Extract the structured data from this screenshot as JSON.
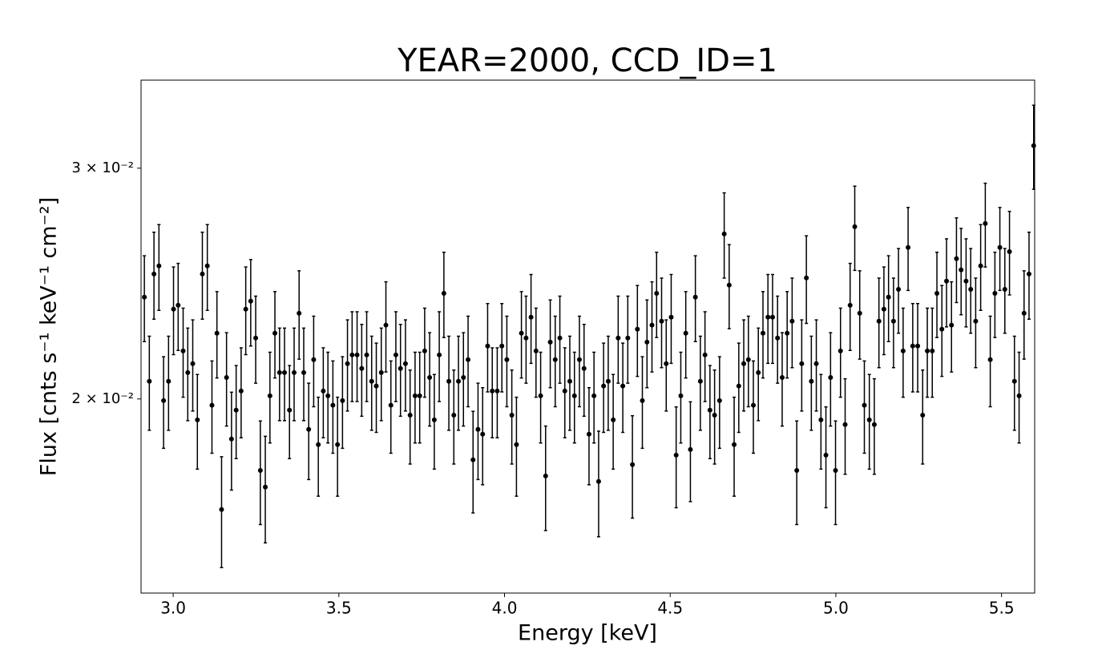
{
  "chart_data": {
    "type": "errorbar-scatter",
    "title": "YEAR=2000, CCD_ID=1",
    "xlabel": "Energy [keV]",
    "ylabel": "Flux [cnts s⁻¹ keV⁻¹ cm⁻²]",
    "yscale": "log",
    "color": "#000000",
    "xlim": [
      2.903,
      5.6
    ],
    "ylim": [
      0.01422,
      0.03502
    ],
    "xticks": [
      {
        "value": 3,
        "label": "3.0"
      },
      3.5,
      {
        "value": 4,
        "label": "4.0"
      },
      4.5,
      {
        "value": 5,
        "label": "5.0"
      },
      5.5
    ],
    "yticks": [
      {
        "value": 0.02,
        "label": "2 × 10⁻²"
      },
      {
        "value": 0.03,
        "label": "3 × 10⁻²"
      }
    ],
    "x": [
      2.913,
      2.928,
      2.942,
      2.957,
      2.971,
      2.986,
      3.001,
      3.015,
      3.03,
      3.044,
      3.059,
      3.073,
      3.088,
      3.103,
      3.117,
      3.132,
      3.146,
      3.161,
      3.176,
      3.19,
      3.205,
      3.219,
      3.234,
      3.249,
      3.263,
      3.278,
      3.292,
      3.307,
      3.321,
      3.336,
      3.351,
      3.365,
      3.38,
      3.394,
      3.409,
      3.424,
      3.438,
      3.453,
      3.467,
      3.482,
      3.496,
      3.511,
      3.526,
      3.54,
      3.555,
      3.569,
      3.584,
      3.599,
      3.613,
      3.628,
      3.642,
      3.657,
      3.672,
      3.686,
      3.701,
      3.715,
      3.73,
      3.744,
      3.759,
      3.774,
      3.788,
      3.803,
      3.817,
      3.832,
      3.847,
      3.861,
      3.876,
      3.89,
      3.905,
      3.92,
      3.934,
      3.949,
      3.963,
      3.978,
      3.992,
      4.007,
      4.022,
      4.036,
      4.051,
      4.065,
      4.08,
      4.095,
      4.109,
      4.124,
      4.138,
      4.153,
      4.167,
      4.182,
      4.197,
      4.211,
      4.226,
      4.24,
      4.255,
      4.27,
      4.284,
      4.299,
      4.313,
      4.328,
      4.343,
      4.357,
      4.372,
      4.386,
      4.401,
      4.416,
      4.43,
      4.445,
      4.459,
      4.474,
      4.488,
      4.503,
      4.518,
      4.532,
      4.547,
      4.561,
      4.576,
      4.591,
      4.605,
      4.62,
      4.634,
      4.649,
      4.663,
      4.678,
      4.693,
      4.707,
      4.722,
      4.736,
      4.751,
      4.766,
      4.78,
      4.795,
      4.809,
      4.824,
      4.838,
      4.853,
      4.868,
      4.882,
      4.897,
      4.911,
      4.926,
      4.941,
      4.955,
      4.97,
      4.984,
      4.999,
      5.014,
      5.028,
      5.043,
      5.057,
      5.072,
      5.086,
      5.101,
      5.116,
      5.13,
      5.145,
      5.159,
      5.174,
      5.189,
      5.203,
      5.218,
      5.232,
      5.247,
      5.262,
      5.276,
      5.291,
      5.305,
      5.32,
      5.334,
      5.349,
      5.364,
      5.378,
      5.393,
      5.407,
      5.422,
      5.437,
      5.451,
      5.466,
      5.48,
      5.495,
      5.51,
      5.524,
      5.539,
      5.553,
      5.568,
      5.583,
      5.597
    ],
    "values": [
      0.02392,
      0.02063,
      0.02491,
      0.02527,
      0.01994,
      0.02063,
      0.02342,
      0.02358,
      0.02176,
      0.02095,
      0.02128,
      0.01928,
      0.02491,
      0.02527,
      0.01978,
      0.02245,
      0.01647,
      0.02077,
      0.01864,
      0.01961,
      0.02028,
      0.02342,
      0.02375,
      0.02226,
      0.01764,
      0.01713,
      0.02011,
      0.02245,
      0.02095,
      0.02095,
      0.01961,
      0.02095,
      0.02325,
      0.02095,
      0.01896,
      0.02143,
      0.01846,
      0.02028,
      0.02011,
      0.01978,
      0.01846,
      0.01994,
      0.02128,
      0.02161,
      0.02161,
      0.0211,
      0.02161,
      0.02063,
      0.02046,
      0.02095,
      0.02277,
      0.01978,
      0.02161,
      0.0211,
      0.02128,
      0.01944,
      0.02011,
      0.02011,
      0.02176,
      0.02077,
      0.01928,
      0.02161,
      0.02408,
      0.02063,
      0.01944,
      0.02063,
      0.02077,
      0.02143,
      0.01797,
      0.01896,
      0.0188,
      0.02195,
      0.02028,
      0.02028,
      0.02195,
      0.02143,
      0.01944,
      0.01846,
      0.02245,
      0.02226,
      0.02309,
      0.02176,
      0.02011,
      0.01747,
      0.0221,
      0.02143,
      0.02226,
      0.02028,
      0.02063,
      0.02011,
      0.02143,
      0.0211,
      0.0188,
      0.02011,
      0.0173,
      0.02046,
      0.02063,
      0.01928,
      0.02226,
      0.02046,
      0.02226,
      0.01782,
      0.02261,
      0.01994,
      0.0221,
      0.02277,
      0.02408,
      0.02293,
      0.02128,
      0.02309,
      0.01812,
      0.02011,
      0.02245,
      0.0183,
      0.02392,
      0.02063,
      0.02161,
      0.01961,
      0.01944,
      0.01994,
      0.02673,
      0.02443,
      0.01846,
      0.02046,
      0.02128,
      0.02143,
      0.01978,
      0.02095,
      0.02245,
      0.02309,
      0.02309,
      0.02226,
      0.02077,
      0.02245,
      0.02293,
      0.01764,
      0.02128,
      0.02474,
      0.02063,
      0.02128,
      0.01928,
      0.01812,
      0.02077,
      0.01764,
      0.02176,
      0.01912,
      0.02358,
      0.02707,
      0.02325,
      0.01978,
      0.01928,
      0.01912,
      0.02293,
      0.02342,
      0.02392,
      0.02293,
      0.02425,
      0.02176,
      0.0261,
      0.02195,
      0.02195,
      0.01944,
      0.02176,
      0.02176,
      0.02408,
      0.02261,
      0.0246,
      0.02277,
      0.02559,
      0.02509,
      0.0246,
      0.02425,
      0.02293,
      0.02527,
      0.02722,
      0.02143,
      0.02408,
      0.0261,
      0.02425,
      0.02591,
      0.02063,
      0.02011,
      0.02325,
      0.02491,
      0.03121
    ],
    "errors": [
      0.0018,
      0.0017,
      0.0019,
      0.0019,
      0.0016,
      0.0017,
      0.0018,
      0.0018,
      0.0017,
      0.0017,
      0.0017,
      0.0016,
      0.0019,
      0.0019,
      0.0016,
      0.0017,
      0.0016,
      0.0017,
      0.0016,
      0.0016,
      0.0016,
      0.0018,
      0.0018,
      0.0017,
      0.0016,
      0.0016,
      0.0016,
      0.0017,
      0.0017,
      0.0017,
      0.0016,
      0.0017,
      0.0018,
      0.0017,
      0.0016,
      0.0017,
      0.0016,
      0.0016,
      0.0016,
      0.0016,
      0.0016,
      0.0016,
      0.0017,
      0.0017,
      0.0017,
      0.0017,
      0.0017,
      0.0017,
      0.0016,
      0.0017,
      0.0018,
      0.0016,
      0.0017,
      0.0017,
      0.0017,
      0.0016,
      0.0016,
      0.0016,
      0.0017,
      0.0017,
      0.0016,
      0.0017,
      0.0018,
      0.0017,
      0.0016,
      0.0017,
      0.0017,
      0.0017,
      0.0016,
      0.0016,
      0.0016,
      0.0017,
      0.0016,
      0.0016,
      0.0017,
      0.0017,
      0.0016,
      0.0016,
      0.0017,
      0.0017,
      0.0018,
      0.0017,
      0.0016,
      0.0016,
      0.0017,
      0.0017,
      0.0017,
      0.0016,
      0.0017,
      0.0016,
      0.0017,
      0.0017,
      0.0016,
      0.0016,
      0.0016,
      0.0016,
      0.0017,
      0.0016,
      0.0017,
      0.0016,
      0.0017,
      0.0016,
      0.0018,
      0.0016,
      0.0017,
      0.0018,
      0.0018,
      0.0018,
      0.0017,
      0.0018,
      0.0016,
      0.0016,
      0.0017,
      0.0016,
      0.0018,
      0.0017,
      0.0017,
      0.0016,
      0.0016,
      0.0016,
      0.002,
      0.0018,
      0.0016,
      0.0016,
      0.0017,
      0.0017,
      0.0016,
      0.0017,
      0.0017,
      0.0018,
      0.0018,
      0.0017,
      0.0017,
      0.0017,
      0.0018,
      0.0016,
      0.0017,
      0.0019,
      0.0017,
      0.0017,
      0.0016,
      0.0016,
      0.0017,
      0.0016,
      0.0017,
      0.0016,
      0.0018,
      0.002,
      0.0018,
      0.0016,
      0.0016,
      0.0016,
      0.0018,
      0.0018,
      0.0018,
      0.0018,
      0.0018,
      0.0017,
      0.0019,
      0.0017,
      0.0017,
      0.0016,
      0.0017,
      0.0017,
      0.0018,
      0.0018,
      0.0019,
      0.0018,
      0.0019,
      0.0019,
      0.0019,
      0.0018,
      0.0018,
      0.0019,
      0.002,
      0.0017,
      0.0018,
      0.0019,
      0.0018,
      0.0019,
      0.0017,
      0.0016,
      0.0018,
      0.0019,
      0.0023
    ]
  }
}
